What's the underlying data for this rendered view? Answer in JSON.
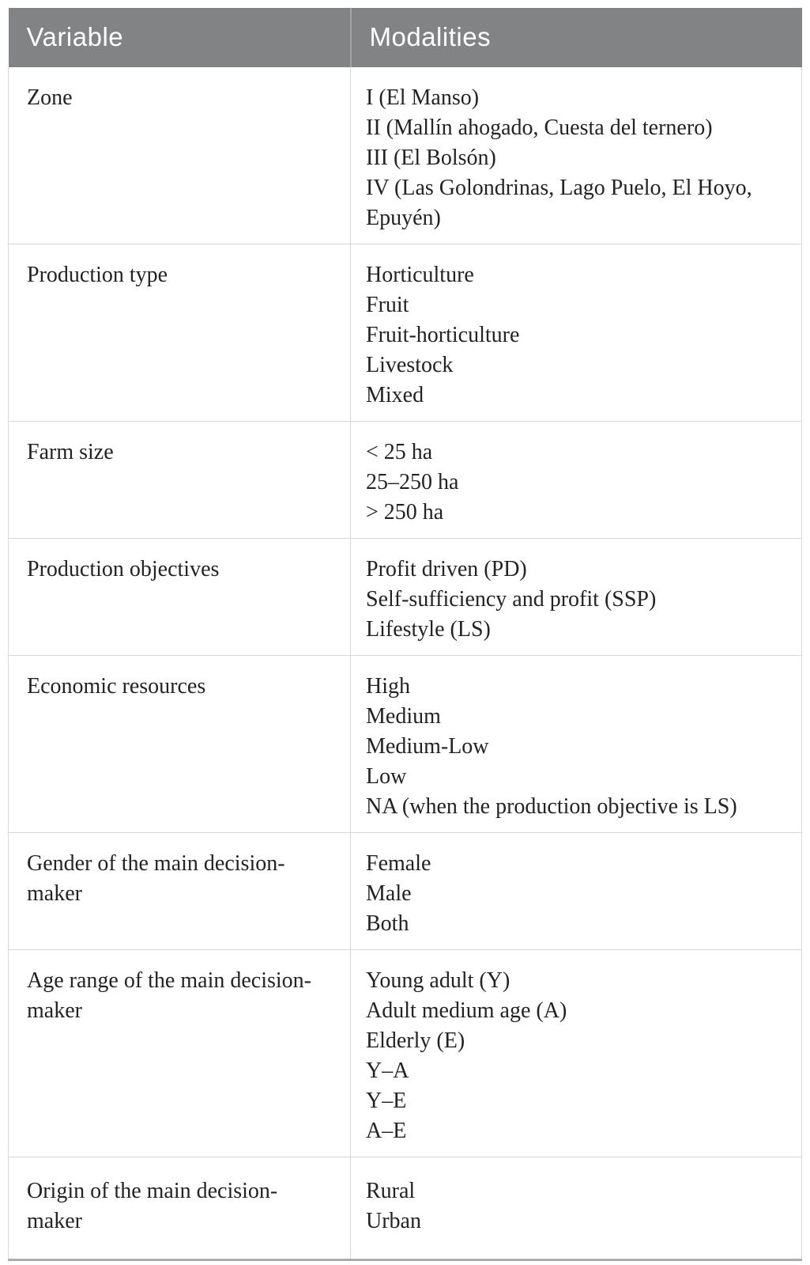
{
  "table": {
    "columns": [
      {
        "label": "Variable"
      },
      {
        "label": "Modalities"
      }
    ],
    "rows": [
      {
        "variable_lines": [
          "Zone"
        ],
        "modalities": [
          "I (El Manso)",
          "II (Mallín ahogado, Cuesta del ternero)",
          "III (El Bolsón)",
          "IV (Las Golondrinas, Lago Puelo, El Hoyo, Epuyén)"
        ]
      },
      {
        "variable_lines": [
          "Production type"
        ],
        "modalities": [
          "Horticulture",
          "Fruit",
          "Fruit-horticulture",
          "Livestock",
          "Mixed"
        ]
      },
      {
        "variable_lines": [
          "Farm size"
        ],
        "modalities": [
          "< 25 ha",
          "25–250 ha",
          "> 250 ha"
        ]
      },
      {
        "variable_lines": [
          "Production objectives"
        ],
        "modalities": [
          "Profit driven (PD)",
          "Self-sufficiency and profit (SSP)",
          "Lifestyle (LS)"
        ]
      },
      {
        "variable_lines": [
          "Economic resources"
        ],
        "modalities": [
          "High",
          "Medium",
          "Medium-Low",
          "Low",
          "NA (when the production objective is LS)"
        ]
      },
      {
        "variable_lines": [
          "Gender of the main decision-",
          "maker"
        ],
        "modalities": [
          "Female",
          "Male",
          "Both"
        ]
      },
      {
        "variable_lines": [
          "Age range of the main decision-",
          "maker"
        ],
        "modalities": [
          "Young adult (Y)",
          "Adult medium age (A)",
          "Elderly (E)",
          "Y–A",
          "Y–E",
          "A–E"
        ]
      },
      {
        "variable_lines": [
          "Origin of the main decision-",
          "maker"
        ],
        "modalities": [
          "Rural",
          "Urban"
        ]
      }
    ],
    "colors": {
      "header_background": "#818385",
      "header_text": "#ffffff",
      "header_divider": "#a2a4a7",
      "grid_line": "#d7d8d9",
      "bottom_border": "#aaacae",
      "body_text": "#232323"
    }
  }
}
